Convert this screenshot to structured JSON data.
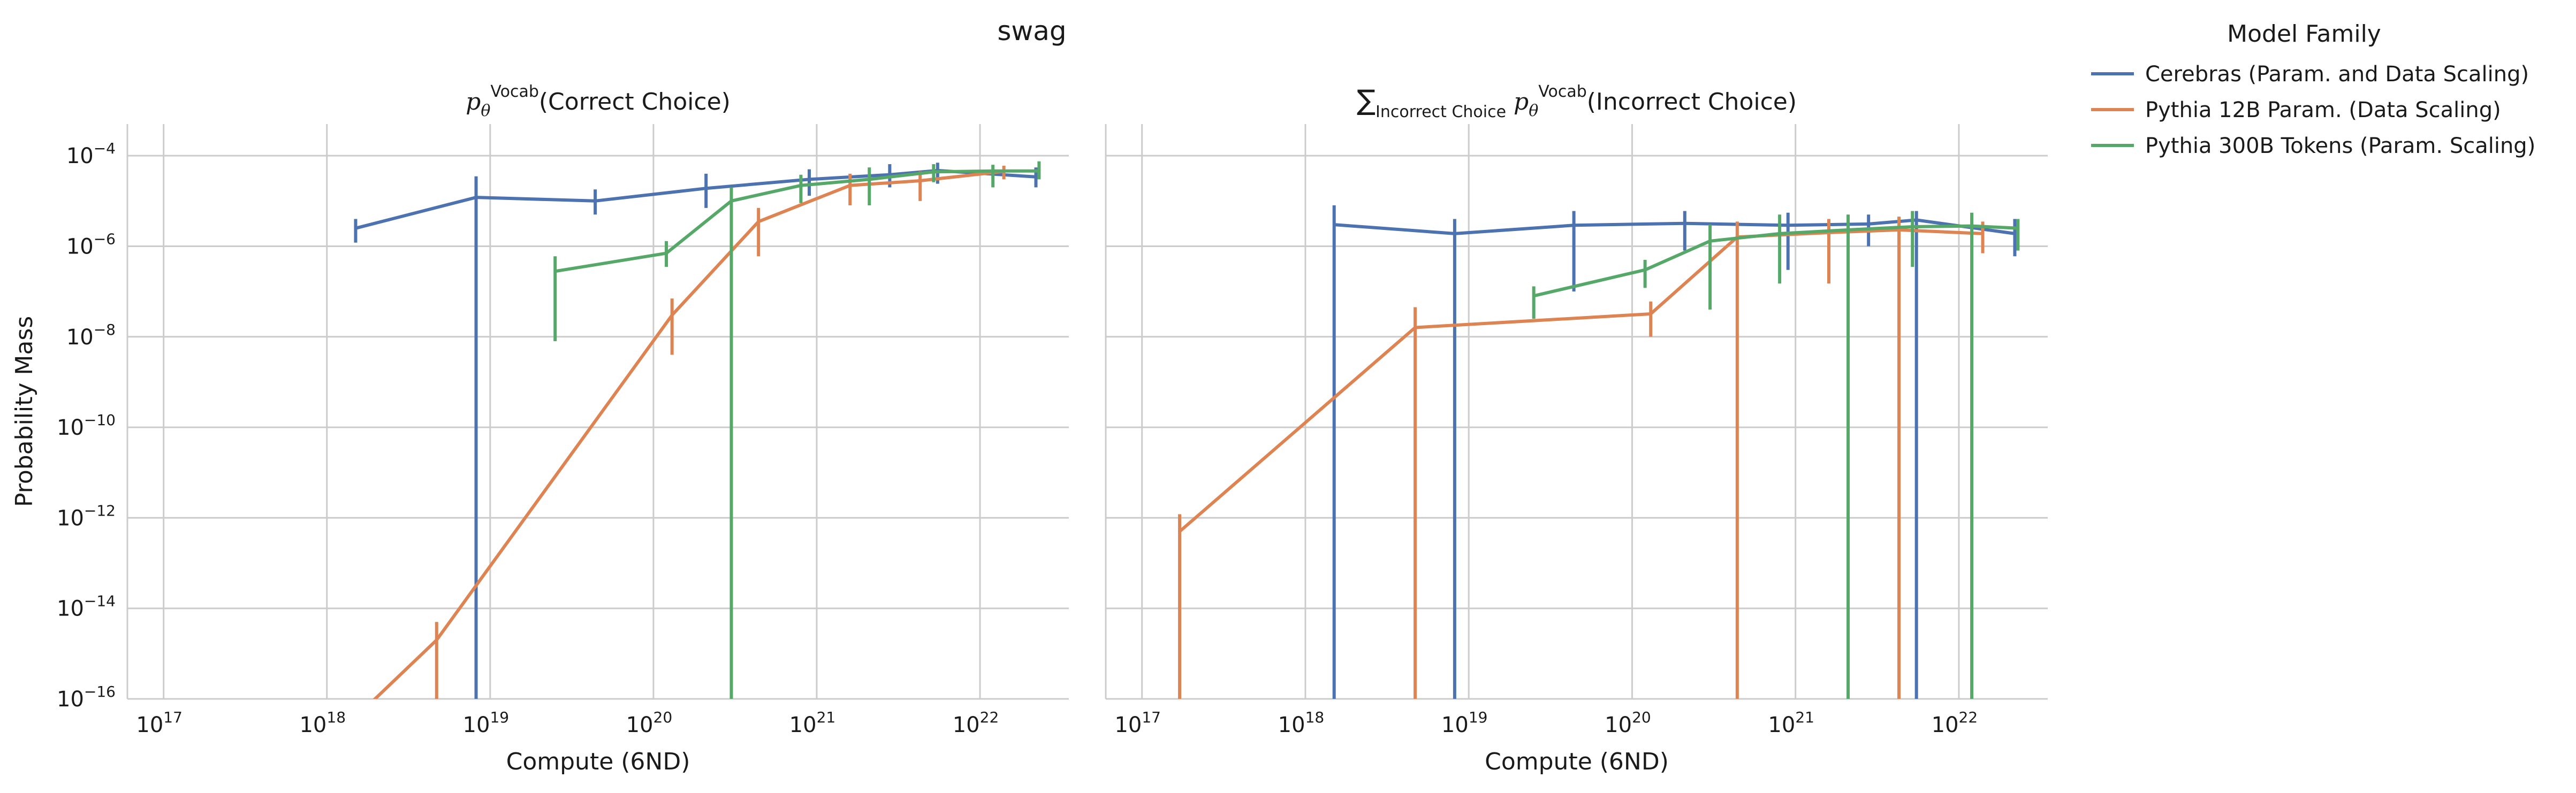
{
  "figure": {
    "suptitle": "swag",
    "legend_title": "Model Family",
    "legend_placement": "right, outside axes"
  },
  "chart_data": [
    {
      "type": "line",
      "title": "p_θ^Vocab(Correct Choice)",
      "title_parts": {
        "symbol": "p",
        "sub": "θ",
        "sup": "Vocab",
        "arg": "(Correct Choice)"
      },
      "xlabel": "Compute (6ND)",
      "ylabel": "Probability Mass",
      "xscale": "log",
      "yscale": "log",
      "xlim": [
        6e+16,
        3.5e+22
      ],
      "ylim": [
        1e-16,
        0.0005
      ],
      "xticks": [
        {
          "base": "10",
          "exp": "17",
          "value": 1e+17
        },
        {
          "base": "10",
          "exp": "18",
          "value": 1e+18
        },
        {
          "base": "10",
          "exp": "19",
          "value": 1e+19
        },
        {
          "base": "10",
          "exp": "20",
          "value": 1e+20
        },
        {
          "base": "10",
          "exp": "21",
          "value": 1e+21
        },
        {
          "base": "10",
          "exp": "22",
          "value": 1e+22
        }
      ],
      "yticks": [
        {
          "base": "10",
          "exp": "−16",
          "value": 1e-16
        },
        {
          "base": "10",
          "exp": "−14",
          "value": 1e-14
        },
        {
          "base": "10",
          "exp": "−12",
          "value": 1e-12
        },
        {
          "base": "10",
          "exp": "−10",
          "value": 1e-10
        },
        {
          "base": "10",
          "exp": "−8",
          "value": 1e-08
        },
        {
          "base": "10",
          "exp": "−6",
          "value": 1e-06
        },
        {
          "base": "10",
          "exp": "−4",
          "value": 0.0001
        }
      ],
      "grid": true,
      "series": [
        {
          "name": "Cerebras (Param. and Data Scaling)",
          "color": "#4c72b0",
          "points": [
            {
              "x": 1.5e+18,
              "y": 2.5e-06,
              "lo": 1.2e-06,
              "hi": 4e-06
            },
            {
              "x": 8.2e+18,
              "y": 1.2e-05,
              "lo": 1e-16,
              "hi": 3.5e-05
            },
            {
              "x": 4.4e+19,
              "y": 1e-05,
              "lo": 5e-06,
              "hi": 1.8e-05
            },
            {
              "x": 2.1e+20,
              "y": 1.9e-05,
              "lo": 7e-06,
              "hi": 4e-05
            },
            {
              "x": 9e+20,
              "y": 3e-05,
              "lo": 1.3e-05,
              "hi": 5e-05
            },
            {
              "x": 2.8e+21,
              "y": 3.8e-05,
              "lo": 2e-05,
              "hi": 6.5e-05
            },
            {
              "x": 5.5e+21,
              "y": 4.7e-05,
              "lo": 2.4e-05,
              "hi": 7e-05
            },
            {
              "x": 2.2e+22,
              "y": 3.4e-05,
              "lo": 2e-05,
              "hi": 5.5e-05
            }
          ]
        },
        {
          "name": "Pythia 12B Param. (Data Scaling)",
          "color": "#dd8452",
          "points": [
            {
              "x": 1.7e+18,
              "y": 6e-17,
              "lo": 3e-17,
              "hi": 1e-16
            },
            {
              "x": 4.7e+18,
              "y": 2e-15,
              "lo": 1e-16,
              "hi": 5e-15
            },
            {
              "x": 1.3e+20,
              "y": 3e-08,
              "lo": 4e-09,
              "hi": 7e-08
            },
            {
              "x": 4.4e+20,
              "y": 3.5e-06,
              "lo": 6e-07,
              "hi": 7e-06
            },
            {
              "x": 1.6e+21,
              "y": 2.2e-05,
              "lo": 8e-06,
              "hi": 4e-05
            },
            {
              "x": 4.3e+21,
              "y": 2.8e-05,
              "lo": 1e-05,
              "hi": 4.5e-05
            },
            {
              "x": 1.4e+22,
              "y": 4.5e-05,
              "lo": 3e-05,
              "hi": 6e-05
            }
          ]
        },
        {
          "name": "Pythia 300B Tokens (Param. Scaling)",
          "color": "#55a868",
          "points": [
            {
              "x": 2.5e+19,
              "y": 2.8e-07,
              "lo": 8e-09,
              "hi": 6e-07
            },
            {
              "x": 1.2e+20,
              "y": 7e-07,
              "lo": 3.5e-07,
              "hi": 1.3e-06
            },
            {
              "x": 3e+20,
              "y": 1e-05,
              "lo": 1e-16,
              "hi": 2e-05
            },
            {
              "x": 8e+20,
              "y": 2.2e-05,
              "lo": 9e-06,
              "hi": 3.8e-05
            },
            {
              "x": 2.1e+21,
              "y": 3e-05,
              "lo": 8e-06,
              "hi": 5.5e-05
            },
            {
              "x": 5.2e+21,
              "y": 4.4e-05,
              "lo": 2.6e-05,
              "hi": 6.5e-05
            },
            {
              "x": 1.2e+22,
              "y": 4.6e-05,
              "lo": 2e-05,
              "hi": 6.3e-05
            },
            {
              "x": 2.3e+22,
              "y": 4.6e-05,
              "lo": 3e-05,
              "hi": 7.5e-05
            }
          ]
        }
      ]
    },
    {
      "type": "line",
      "title": "∑_Incorrect Choice p_θ^Vocab(Incorrect Choice)",
      "title_parts": {
        "sum": "∑",
        "sum_sub": "Incorrect Choice",
        "symbol": "p",
        "sub": "θ",
        "sup": "Vocab",
        "arg": "(Incorrect Choice)"
      },
      "xlabel": "Compute (6ND)",
      "ylabel": "",
      "xscale": "log",
      "yscale": "log",
      "xlim": [
        6e+16,
        3.5e+22
      ],
      "ylim": [
        1e-16,
        0.0005
      ],
      "xticks": [
        {
          "base": "10",
          "exp": "17",
          "value": 1e+17
        },
        {
          "base": "10",
          "exp": "18",
          "value": 1e+18
        },
        {
          "base": "10",
          "exp": "19",
          "value": 1e+19
        },
        {
          "base": "10",
          "exp": "20",
          "value": 1e+20
        },
        {
          "base": "10",
          "exp": "21",
          "value": 1e+21
        },
        {
          "base": "10",
          "exp": "22",
          "value": 1e+22
        }
      ],
      "yticks": [],
      "grid": true,
      "series": [
        {
          "name": "Cerebras (Param. and Data Scaling)",
          "color": "#4c72b0",
          "points": [
            {
              "x": 1.5e+18,
              "y": 3e-06,
              "lo": 1e-16,
              "hi": 8e-06
            },
            {
              "x": 8.2e+18,
              "y": 1.9e-06,
              "lo": 1e-16,
              "hi": 4e-06
            },
            {
              "x": 4.4e+19,
              "y": 2.9e-06,
              "lo": 1e-07,
              "hi": 6e-06
            },
            {
              "x": 2.1e+20,
              "y": 3.2e-06,
              "lo": 8e-07,
              "hi": 6e-06
            },
            {
              "x": 9e+20,
              "y": 2.9e-06,
              "lo": 3e-07,
              "hi": 5.5e-06
            },
            {
              "x": 2.8e+21,
              "y": 3.1e-06,
              "lo": 1e-06,
              "hi": 5e-06
            },
            {
              "x": 5.5e+21,
              "y": 3.8e-06,
              "lo": 1e-16,
              "hi": 6e-06
            },
            {
              "x": 2.2e+22,
              "y": 1.9e-06,
              "lo": 6e-07,
              "hi": 4e-06
            }
          ]
        },
        {
          "name": "Pythia 12B Param. (Data Scaling)",
          "color": "#dd8452",
          "points": [
            {
              "x": 1.7e+17,
              "y": 5e-13,
              "lo": 1e-16,
              "hi": 1.2e-12
            },
            {
              "x": 4.7e+18,
              "y": 1.6e-08,
              "lo": 1e-16,
              "hi": 4.5e-08
            },
            {
              "x": 1.3e+20,
              "y": 3.2e-08,
              "lo": 1e-08,
              "hi": 6e-08
            },
            {
              "x": 4.4e+20,
              "y": 1.6e-06,
              "lo": 1e-16,
              "hi": 3.5e-06
            },
            {
              "x": 1.6e+21,
              "y": 2e-06,
              "lo": 1.5e-07,
              "hi": 4e-06
            },
            {
              "x": 4.3e+21,
              "y": 2.3e-06,
              "lo": 1e-16,
              "hi": 4.5e-06
            },
            {
              "x": 1.4e+22,
              "y": 1.9e-06,
              "lo": 7e-07,
              "hi": 3.5e-06
            }
          ]
        },
        {
          "name": "Pythia 300B Tokens (Param. Scaling)",
          "color": "#55a868",
          "points": [
            {
              "x": 2.5e+19,
              "y": 8e-08,
              "lo": 2.5e-08,
              "hi": 1.3e-07
            },
            {
              "x": 1.2e+20,
              "y": 3e-07,
              "lo": 1.2e-07,
              "hi": 5e-07
            },
            {
              "x": 3e+20,
              "y": 1.3e-06,
              "lo": 4e-08,
              "hi": 3e-06
            },
            {
              "x": 8e+20,
              "y": 1.9e-06,
              "lo": 1.5e-07,
              "hi": 5e-06
            },
            {
              "x": 2.1e+21,
              "y": 2.3e-06,
              "lo": 1e-16,
              "hi": 5e-06
            },
            {
              "x": 5.2e+21,
              "y": 2.7e-06,
              "lo": 3.5e-07,
              "hi": 6e-06
            },
            {
              "x": 1.2e+22,
              "y": 2.8e-06,
              "lo": 1e-16,
              "hi": 5.5e-06
            },
            {
              "x": 2.3e+22,
              "y": 2.5e-06,
              "lo": 8e-07,
              "hi": 4e-06
            }
          ]
        }
      ]
    }
  ]
}
